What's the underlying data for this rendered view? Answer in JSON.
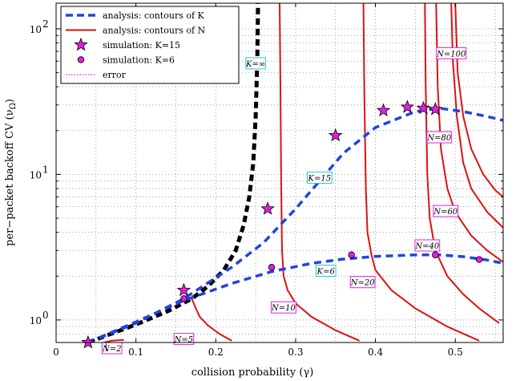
{
  "chart_data": {
    "type": "line",
    "xlabel": "collision probability (γ)",
    "ylabel": "per−packet backoff CV (νΩ)",
    "xlim": [
      0,
      0.56
    ],
    "ylim": [
      0.7,
      150
    ],
    "yscale": "log",
    "grid": true,
    "legend_position": "top-left",
    "x_ticks": [
      {
        "value": 0,
        "label": "0"
      },
      {
        "value": 0.1,
        "label": "0.1"
      },
      {
        "value": 0.2,
        "label": "0.2"
      },
      {
        "value": 0.3,
        "label": "0.3"
      },
      {
        "value": 0.4,
        "label": "0.4"
      },
      {
        "value": 0.5,
        "label": "0.5"
      }
    ],
    "y_ticks": [
      {
        "value": 1,
        "base": "10",
        "exp": "0"
      },
      {
        "value": 10,
        "base": "10",
        "exp": "1"
      },
      {
        "value": 100,
        "base": "10",
        "exp": "2"
      }
    ],
    "legend": [
      {
        "text": "analysis: contours of K",
        "style": "k-contour"
      },
      {
        "text": "analysis: contours of N",
        "style": "n-contour"
      },
      {
        "text": "simulation: K=15",
        "style": "star"
      },
      {
        "text": "simulation: K=6",
        "style": "circle"
      },
      {
        "text": "error",
        "style": "error"
      }
    ],
    "colors": {
      "k_contour": "#2244dd",
      "n_contour": "#dd1111",
      "k_inf": "#000000",
      "marker": "#e020e0",
      "k_label_box": "#22cccc",
      "n_label_box": "#e020e0"
    },
    "k_contours": [
      {
        "label": "K=∞",
        "label_pos": [
          0.25,
          58
        ],
        "color": "#000000",
        "points": [
          [
            0.04,
            0.7
          ],
          [
            0.06,
            0.77
          ],
          [
            0.1,
            0.93
          ],
          [
            0.14,
            1.15
          ],
          [
            0.17,
            1.4
          ],
          [
            0.19,
            1.7
          ],
          [
            0.21,
            2.2
          ],
          [
            0.225,
            3.0
          ],
          [
            0.235,
            4.5
          ],
          [
            0.242,
            7
          ],
          [
            0.247,
            12
          ],
          [
            0.25,
            25
          ],
          [
            0.252,
            60
          ],
          [
            0.253,
            150
          ]
        ]
      },
      {
        "label": "K=15",
        "label_pos": [
          0.33,
          9.5
        ],
        "color": "#2244dd",
        "points": [
          [
            0.04,
            0.7
          ],
          [
            0.1,
            0.95
          ],
          [
            0.16,
            1.4
          ],
          [
            0.22,
            2.3
          ],
          [
            0.26,
            3.4
          ],
          [
            0.3,
            5.8
          ],
          [
            0.33,
            9.0
          ],
          [
            0.36,
            14.0
          ],
          [
            0.4,
            21.0
          ],
          [
            0.45,
            27.0
          ],
          [
            0.48,
            28.5
          ],
          [
            0.51,
            27.0
          ],
          [
            0.54,
            25.0
          ],
          [
            0.56,
            23.5
          ]
        ]
      },
      {
        "label": "K=6",
        "label_pos": [
          0.338,
          2.18
        ],
        "color": "#2244dd",
        "points": [
          [
            0.04,
            0.7
          ],
          [
            0.1,
            0.97
          ],
          [
            0.16,
            1.36
          ],
          [
            0.22,
            1.78
          ],
          [
            0.27,
            2.15
          ],
          [
            0.32,
            2.45
          ],
          [
            0.36,
            2.62
          ],
          [
            0.4,
            2.73
          ],
          [
            0.45,
            2.8
          ],
          [
            0.48,
            2.8
          ],
          [
            0.51,
            2.72
          ],
          [
            0.54,
            2.58
          ],
          [
            0.56,
            2.45
          ]
        ]
      }
    ],
    "n_contours": [
      {
        "label": "N=2",
        "label_pos": [
          0.07,
          0.64
        ],
        "points": [
          [
            0.06,
            0.7
          ],
          [
            0.07,
            0.72
          ],
          [
            0.085,
            0.73
          ]
        ]
      },
      {
        "label": "N=5",
        "label_pos": [
          0.16,
          0.74
        ],
        "points": [
          [
            0.17,
            1.4
          ],
          [
            0.175,
            1.2
          ],
          [
            0.18,
            1.05
          ],
          [
            0.19,
            0.92
          ],
          [
            0.205,
            0.8
          ],
          [
            0.22,
            0.72
          ]
        ]
      },
      {
        "label": "N=10",
        "label_pos": [
          0.285,
          1.22
        ],
        "points": [
          [
            0.28,
            150
          ],
          [
            0.281,
            40
          ],
          [
            0.282,
            8
          ],
          [
            0.283,
            3.0
          ],
          [
            0.285,
            2.0
          ],
          [
            0.29,
            1.6
          ],
          [
            0.3,
            1.3
          ],
          [
            0.32,
            1.05
          ],
          [
            0.35,
            0.85
          ],
          [
            0.38,
            0.72
          ]
        ]
      },
      {
        "label": "N=20",
        "label_pos": [
          0.384,
          1.82
        ],
        "points": [
          [
            0.385,
            150
          ],
          [
            0.386,
            40
          ],
          [
            0.388,
            8
          ],
          [
            0.39,
            4.0
          ],
          [
            0.395,
            2.8
          ],
          [
            0.4,
            2.2
          ],
          [
            0.42,
            1.6
          ],
          [
            0.45,
            1.2
          ],
          [
            0.49,
            0.9
          ],
          [
            0.53,
            0.72
          ]
        ]
      },
      {
        "label": "N=40",
        "label_pos": [
          0.465,
          3.25
        ],
        "points": [
          [
            0.462,
            150
          ],
          [
            0.463,
            40
          ],
          [
            0.465,
            10
          ],
          [
            0.468,
            5.0
          ],
          [
            0.475,
            3.0
          ],
          [
            0.49,
            2.0
          ],
          [
            0.51,
            1.5
          ],
          [
            0.53,
            1.2
          ],
          [
            0.555,
            0.95
          ]
        ]
      },
      {
        "label": "N=60",
        "label_pos": [
          0.488,
          5.6
        ],
        "points": [
          [
            0.476,
            150
          ],
          [
            0.478,
            40
          ],
          [
            0.482,
            15
          ],
          [
            0.49,
            8.0
          ],
          [
            0.5,
            5.5
          ],
          [
            0.52,
            3.8
          ],
          [
            0.54,
            3.0
          ],
          [
            0.56,
            2.5
          ]
        ]
      },
      {
        "label": "N=80",
        "label_pos": [
          0.48,
          18
        ],
        "points": [
          [
            0.495,
            150
          ],
          [
            0.497,
            60
          ],
          [
            0.502,
            25
          ],
          [
            0.51,
            12.0
          ],
          [
            0.52,
            8.0
          ],
          [
            0.54,
            5.5
          ],
          [
            0.56,
            4.3
          ]
        ]
      },
      {
        "label": "N=100",
        "label_pos": [
          0.495,
          68
        ],
        "points": [
          [
            0.5,
            150
          ],
          [
            0.503,
            50
          ],
          [
            0.51,
            25
          ],
          [
            0.52,
            15.0
          ],
          [
            0.535,
            10.0
          ],
          [
            0.55,
            7.8
          ],
          [
            0.56,
            7.0
          ]
        ]
      }
    ],
    "k_labels": [
      "K=∞",
      "K=15",
      "K=6"
    ],
    "n_labels": [
      "N=2",
      "N=5",
      "N=10",
      "N=20",
      "N=40",
      "N=60",
      "N=80",
      "N=100"
    ],
    "sim_k15": [
      [
        0.04,
        0.7
      ],
      [
        0.16,
        1.6
      ],
      [
        0.265,
        5.8
      ],
      [
        0.35,
        18.5
      ],
      [
        0.41,
        27.5
      ],
      [
        0.44,
        29.0
      ],
      [
        0.46,
        28.5
      ],
      [
        0.475,
        28.0
      ]
    ],
    "sim_k6": [
      [
        0.16,
        1.4
      ],
      [
        0.27,
        2.3
      ],
      [
        0.37,
        2.8
      ],
      [
        0.475,
        2.8
      ],
      [
        0.53,
        2.6
      ]
    ]
  }
}
